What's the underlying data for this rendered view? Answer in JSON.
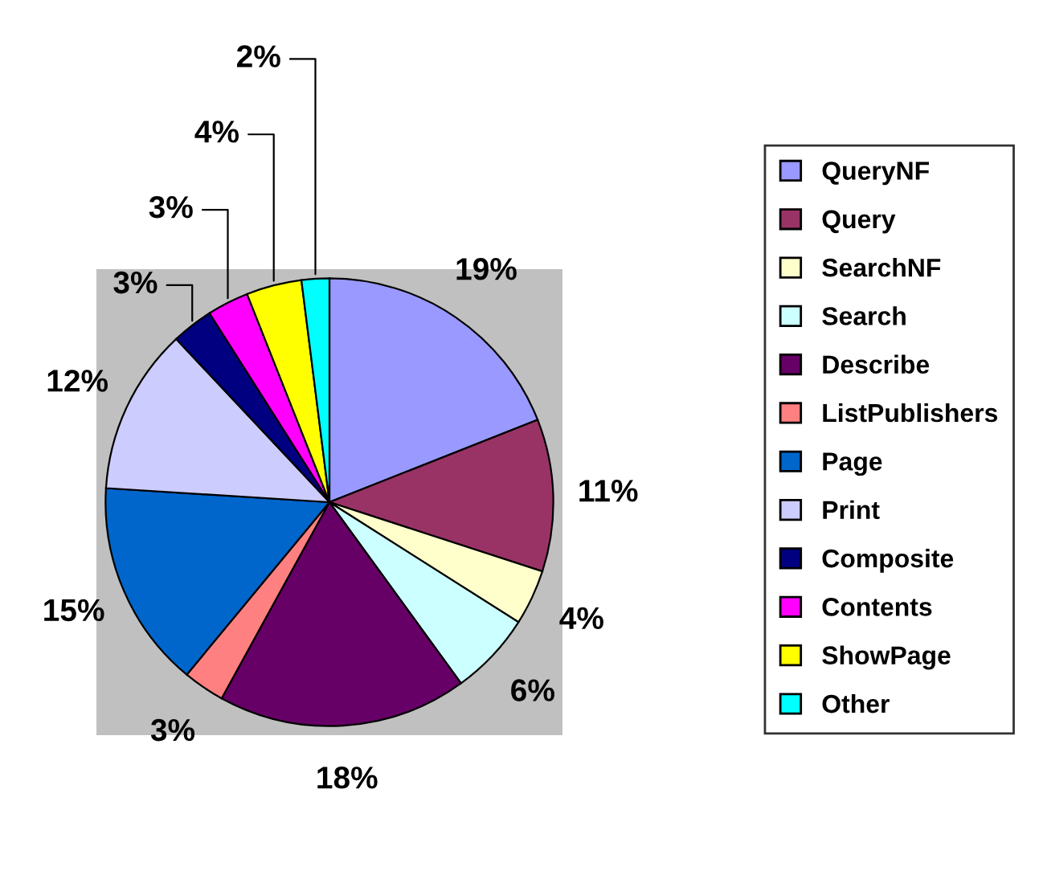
{
  "chart_data": {
    "type": "pie",
    "categories": [
      "QueryNF",
      "Query",
      "SearchNF",
      "Search",
      "Describe",
      "ListPublishers",
      "Page",
      "Print",
      "Composite",
      "Contents",
      "ShowPage",
      "Other"
    ],
    "values": [
      19,
      11,
      4,
      6,
      18,
      3,
      15,
      12,
      3,
      3,
      4,
      2
    ],
    "colors": [
      "#9999ff",
      "#993366",
      "#ffffcc",
      "#ccffff",
      "#660066",
      "#ff8080",
      "#0066cc",
      "#ccccff",
      "#000080",
      "#ff00ff",
      "#ffff00",
      "#00ffff"
    ],
    "value_labels": [
      "19%",
      "11%",
      "4%",
      "6%",
      "18%",
      "3%",
      "15%",
      "12%",
      "3%",
      "3%",
      "4%",
      "2%"
    ],
    "legend": "right"
  }
}
